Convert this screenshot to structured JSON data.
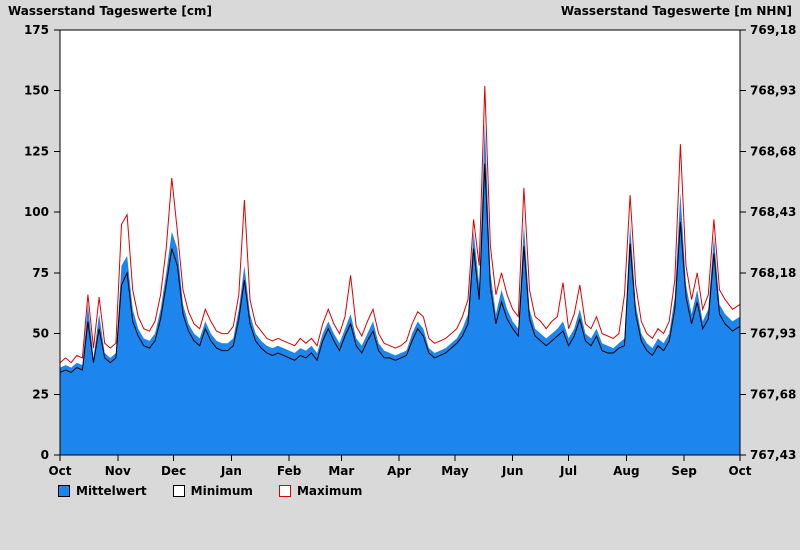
{
  "titles": {
    "left": "Wasserstand Tageswerte [cm]",
    "right": "Wasserstand Tageswerte [m NHN]"
  },
  "legend": [
    {
      "label": "Mittelwert",
      "fill": "#1c86ee",
      "border": "#000000"
    },
    {
      "label": "Minimum",
      "fill": "#ffffff",
      "border": "#000000"
    },
    {
      "label": "Maximum",
      "fill": "#ffffff",
      "border": "#e00000"
    }
  ],
  "chart_data": {
    "type": "area",
    "title": "Wasserstand Tageswerte",
    "xlabel": "",
    "ylabel_left": "Wasserstand Tageswerte [cm]",
    "ylabel_right": "Wasserstand Tageswerte [m NHN]",
    "grid": false,
    "legend_position": "bottom-left",
    "colors": {
      "background": "#d9d9d9",
      "plot_bg": "#ffffff",
      "frame": "#000000",
      "area_mean": "#1c86ee",
      "line_min": "#000000",
      "line_max": "#e00000"
    },
    "x_range": [
      0,
      365
    ],
    "x_ticks": [
      {
        "day": 0,
        "label": "Oct"
      },
      {
        "day": 31,
        "label": "Nov"
      },
      {
        "day": 61,
        "label": "Dec"
      },
      {
        "day": 92,
        "label": "Jan"
      },
      {
        "day": 123,
        "label": "Feb"
      },
      {
        "day": 151,
        "label": "Mar"
      },
      {
        "day": 182,
        "label": "Apr"
      },
      {
        "day": 212,
        "label": "May"
      },
      {
        "day": 243,
        "label": "Jun"
      },
      {
        "day": 273,
        "label": "Jul"
      },
      {
        "day": 304,
        "label": "Aug"
      },
      {
        "day": 335,
        "label": "Sep"
      },
      {
        "day": 365,
        "label": "Oct"
      }
    ],
    "y_left": {
      "min": 0,
      "max": 175,
      "ticks": [
        0,
        25,
        50,
        75,
        100,
        125,
        150,
        175
      ]
    },
    "y_right": {
      "min": 767.43,
      "max": 769.18,
      "tick_labels": [
        "767,43",
        "767,68",
        "767,93",
        "768,18",
        "768,43",
        "768,68",
        "768,93",
        "769,18"
      ]
    },
    "x_days": [
      0,
      3,
      6,
      9,
      12,
      15,
      18,
      21,
      24,
      27,
      30,
      33,
      36,
      39,
      42,
      45,
      48,
      51,
      54,
      57,
      60,
      63,
      66,
      69,
      72,
      75,
      78,
      81,
      84,
      87,
      90,
      93,
      96,
      99,
      102,
      105,
      108,
      111,
      114,
      117,
      120,
      123,
      126,
      129,
      132,
      135,
      138,
      141,
      144,
      147,
      150,
      153,
      156,
      159,
      162,
      165,
      168,
      171,
      174,
      177,
      180,
      183,
      186,
      189,
      192,
      195,
      198,
      201,
      204,
      207,
      210,
      213,
      216,
      219,
      222,
      225,
      228,
      231,
      234,
      237,
      240,
      243,
      246,
      249,
      252,
      255,
      258,
      261,
      264,
      267,
      270,
      273,
      276,
      279,
      282,
      285,
      288,
      291,
      294,
      297,
      300,
      303,
      306,
      309,
      312,
      315,
      318,
      321,
      324,
      327,
      330,
      333,
      336,
      339,
      342,
      345,
      348,
      351,
      354,
      357,
      361,
      365
    ],
    "series": [
      {
        "name": "Mittelwert",
        "style": "area",
        "color": "#1c86ee",
        "values": [
          36,
          37,
          36,
          38,
          37,
          62,
          40,
          58,
          42,
          40,
          42,
          78,
          82,
          60,
          52,
          48,
          47,
          50,
          60,
          75,
          92,
          85,
          62,
          54,
          50,
          48,
          55,
          50,
          47,
          46,
          46,
          48,
          60,
          78,
          58,
          50,
          47,
          45,
          44,
          45,
          44,
          43,
          42,
          44,
          43,
          45,
          42,
          50,
          55,
          50,
          46,
          52,
          58,
          48,
          45,
          50,
          55,
          46,
          43,
          42,
          41,
          42,
          43,
          50,
          55,
          52,
          44,
          42,
          43,
          44,
          46,
          48,
          52,
          58,
          92,
          70,
          137,
          75,
          58,
          68,
          60,
          55,
          52,
          95,
          60,
          52,
          50,
          48,
          50,
          52,
          55,
          48,
          52,
          60,
          50,
          48,
          52,
          46,
          45,
          44,
          46,
          48,
          95,
          62,
          50,
          46,
          44,
          48,
          46,
          50,
          65,
          108,
          70,
          58,
          68,
          55,
          60,
          90,
          62,
          58,
          55,
          57
        ]
      },
      {
        "name": "Minimum",
        "style": "line",
        "color": "#000000",
        "values": [
          34,
          35,
          34,
          36,
          35,
          55,
          38,
          52,
          40,
          38,
          40,
          70,
          75,
          55,
          49,
          45,
          44,
          47,
          56,
          70,
          85,
          78,
          58,
          51,
          47,
          45,
          52,
          47,
          44,
          43,
          43,
          45,
          56,
          72,
          54,
          47,
          44,
          42,
          41,
          42,
          41,
          40,
          39,
          41,
          40,
          42,
          39,
          47,
          52,
          47,
          43,
          49,
          54,
          45,
          42,
          47,
          51,
          43,
          40,
          40,
          39,
          40,
          41,
          47,
          52,
          49,
          42,
          40,
          41,
          42,
          44,
          46,
          49,
          54,
          85,
          64,
          120,
          69,
          54,
          63,
          56,
          52,
          49,
          86,
          56,
          49,
          47,
          45,
          47,
          49,
          51,
          45,
          49,
          56,
          47,
          45,
          49,
          43,
          42,
          42,
          44,
          45,
          87,
          58,
          47,
          43,
          41,
          45,
          43,
          47,
          60,
          96,
          65,
          54,
          63,
          52,
          56,
          83,
          58,
          54,
          51,
          53
        ]
      },
      {
        "name": "Maximum",
        "style": "line",
        "color": "#e00000",
        "values": [
          38,
          40,
          38,
          41,
          40,
          66,
          44,
          65,
          46,
          44,
          46,
          95,
          99,
          68,
          57,
          52,
          51,
          55,
          66,
          85,
          114,
          92,
          68,
          59,
          54,
          52,
          60,
          55,
          51,
          50,
          50,
          53,
          66,
          105,
          64,
          54,
          51,
          48,
          47,
          48,
          47,
          46,
          45,
          48,
          46,
          48,
          45,
          54,
          60,
          54,
          50,
          57,
          74,
          53,
          49,
          55,
          60,
          50,
          46,
          45,
          44,
          45,
          47,
          54,
          59,
          57,
          48,
          46,
          47,
          48,
          50,
          52,
          57,
          64,
          97,
          78,
          152,
          86,
          66,
          75,
          66,
          60,
          57,
          110,
          68,
          57,
          55,
          52,
          55,
          57,
          71,
          52,
          58,
          70,
          54,
          52,
          57,
          50,
          49,
          48,
          50,
          66,
          107,
          70,
          55,
          50,
          48,
          52,
          50,
          55,
          72,
          128,
          78,
          64,
          75,
          60,
          66,
          97,
          68,
          64,
          60,
          62
        ]
      }
    ]
  }
}
